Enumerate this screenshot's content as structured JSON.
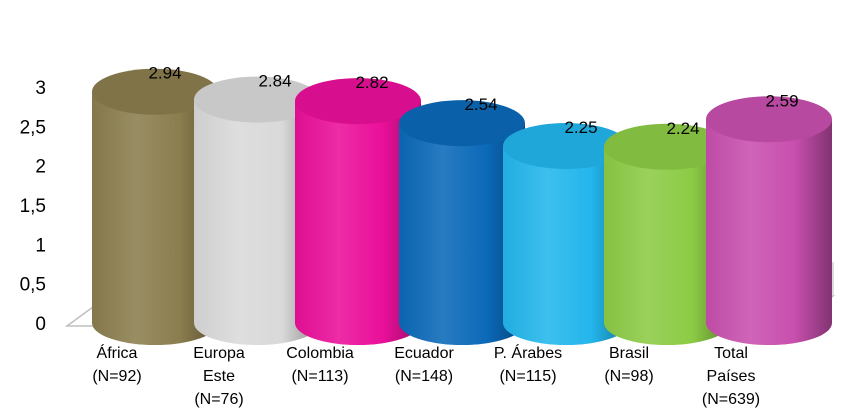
{
  "chart_data": {
    "type": "bar",
    "style": "3d-cylinder",
    "ylim": [
      0,
      3
    ],
    "y_ticks": [
      "0",
      "0,5",
      "1",
      "1,5",
      "2",
      "2,5",
      "3"
    ],
    "categories": [
      [
        "África",
        "(N=92)"
      ],
      [
        "Europa",
        "Este",
        "(N=76)"
      ],
      [
        "Colombia",
        "(N=113)"
      ],
      [
        "Ecuador",
        "(N=148)"
      ],
      [
        "P. Árabes",
        "(N=115)"
      ],
      [
        "Brasil",
        "(N=98)"
      ],
      [
        "Total",
        "Países",
        "(N=639)"
      ]
    ],
    "values": [
      2.94,
      2.84,
      2.82,
      2.54,
      2.25,
      2.24,
      2.59
    ],
    "value_labels": [
      "2.94",
      "2.84",
      "2.82",
      "2.54",
      "2.25",
      "2.24",
      "2.59"
    ],
    "colors": [
      "#8b7d4e",
      "#d9d9d9",
      "#ea0f9a",
      "#0b69b8",
      "#23b6ec",
      "#8ccb45",
      "#c84fae"
    ],
    "grid": false,
    "legend": "none"
  }
}
